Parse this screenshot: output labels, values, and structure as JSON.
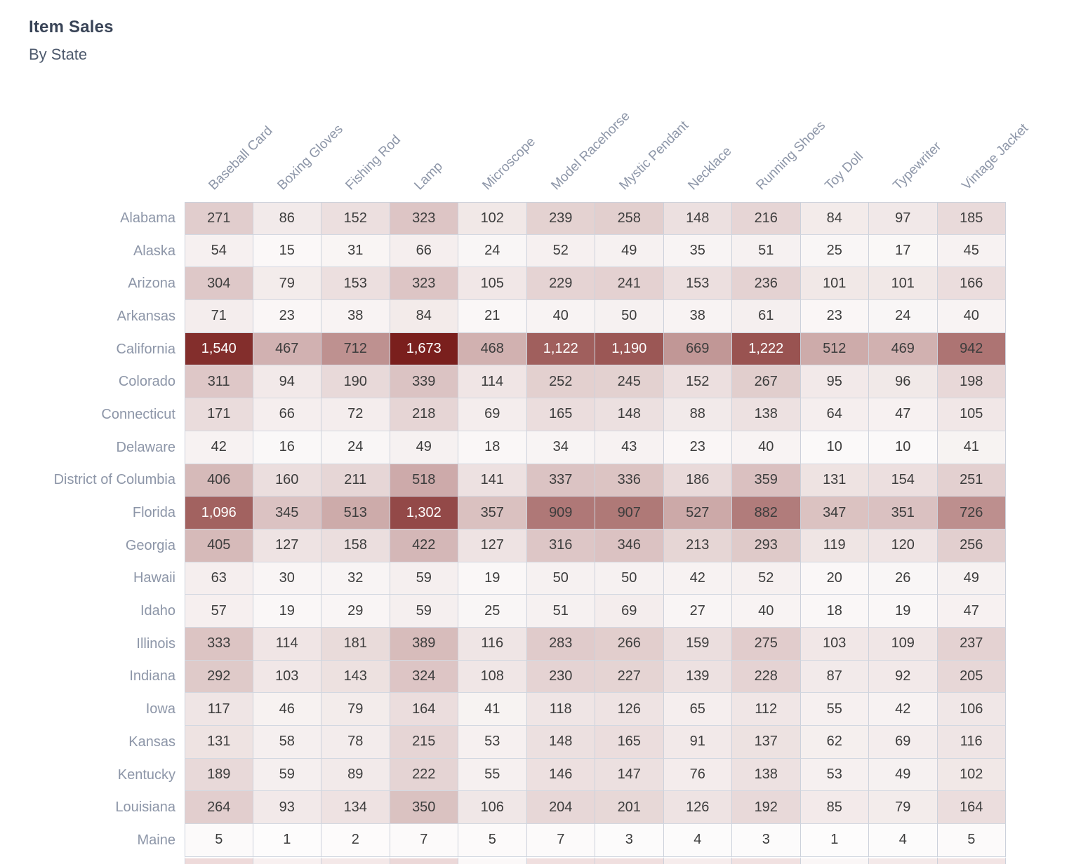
{
  "title": "Item Sales",
  "subtitle": "By State",
  "chart_data": {
    "type": "heatmap",
    "title": "Item Sales",
    "subtitle": "By State",
    "legend": "none",
    "columns": [
      "Baseball Card",
      "Boxing Gloves",
      "Fishing Rod",
      "Lamp",
      "Microscope",
      "Model Racehorse",
      "Mystic Pendant",
      "Necklace",
      "Running Shoes",
      "Toy Doll",
      "Typewriter",
      "Vintage Jacket"
    ],
    "rows": [
      {
        "label": "Alabama",
        "values": [
          271,
          86,
          152,
          323,
          102,
          239,
          258,
          148,
          216,
          84,
          97,
          185
        ]
      },
      {
        "label": "Alaska",
        "values": [
          54,
          15,
          31,
          66,
          24,
          52,
          49,
          35,
          51,
          25,
          17,
          45
        ]
      },
      {
        "label": "Arizona",
        "values": [
          304,
          79,
          153,
          323,
          105,
          229,
          241,
          153,
          236,
          101,
          101,
          166
        ]
      },
      {
        "label": "Arkansas",
        "values": [
          71,
          23,
          38,
          84,
          21,
          40,
          50,
          38,
          61,
          23,
          24,
          40
        ]
      },
      {
        "label": "California",
        "values": [
          1540,
          467,
          712,
          1673,
          468,
          1122,
          1190,
          669,
          1222,
          512,
          469,
          942
        ]
      },
      {
        "label": "Colorado",
        "values": [
          311,
          94,
          190,
          339,
          114,
          252,
          245,
          152,
          267,
          95,
          96,
          198
        ]
      },
      {
        "label": "Connecticut",
        "values": [
          171,
          66,
          72,
          218,
          69,
          165,
          148,
          88,
          138,
          64,
          47,
          105
        ]
      },
      {
        "label": "Delaware",
        "values": [
          42,
          16,
          24,
          49,
          18,
          34,
          43,
          23,
          40,
          10,
          10,
          41
        ]
      },
      {
        "label": "District of Columbia",
        "values": [
          406,
          160,
          211,
          518,
          141,
          337,
          336,
          186,
          359,
          131,
          154,
          251
        ]
      },
      {
        "label": "Florida",
        "values": [
          1096,
          345,
          513,
          1302,
          357,
          909,
          907,
          527,
          882,
          347,
          351,
          726
        ]
      },
      {
        "label": "Georgia",
        "values": [
          405,
          127,
          158,
          422,
          127,
          316,
          346,
          213,
          293,
          119,
          120,
          256
        ]
      },
      {
        "label": "Hawaii",
        "values": [
          63,
          30,
          32,
          59,
          19,
          50,
          50,
          42,
          52,
          20,
          26,
          49
        ]
      },
      {
        "label": "Idaho",
        "values": [
          57,
          19,
          29,
          59,
          25,
          51,
          69,
          27,
          40,
          18,
          19,
          47
        ]
      },
      {
        "label": "Illinois",
        "values": [
          333,
          114,
          181,
          389,
          116,
          283,
          266,
          159,
          275,
          103,
          109,
          237
        ]
      },
      {
        "label": "Indiana",
        "values": [
          292,
          103,
          143,
          324,
          108,
          230,
          227,
          139,
          228,
          87,
          92,
          205
        ]
      },
      {
        "label": "Iowa",
        "values": [
          117,
          46,
          79,
          164,
          41,
          118,
          126,
          65,
          112,
          55,
          42,
          106
        ]
      },
      {
        "label": "Kansas",
        "values": [
          131,
          58,
          78,
          215,
          53,
          148,
          165,
          91,
          137,
          62,
          69,
          116
        ]
      },
      {
        "label": "Kentucky",
        "values": [
          189,
          59,
          89,
          222,
          55,
          146,
          147,
          76,
          138,
          53,
          49,
          102
        ]
      },
      {
        "label": "Louisiana",
        "values": [
          264,
          93,
          134,
          350,
          106,
          204,
          201,
          126,
          192,
          85,
          79,
          164
        ]
      },
      {
        "label": "Maine",
        "values": [
          5,
          1,
          2,
          7,
          5,
          7,
          3,
          4,
          3,
          1,
          4,
          5
        ]
      }
    ],
    "value_range": [
      0,
      1673
    ],
    "color_scale": {
      "min_color": "#fdfcfc",
      "max_color": "#7a1f1d",
      "gamma": 0.85,
      "white_text_threshold": 0.65
    },
    "next_row_partial_colors": [
      "#eedada",
      "#f8f0f0",
      "#f4e8e8",
      "#ecd8d8",
      "#fbf8f8",
      "#f0dfdf",
      "#f0dfdf",
      "#f6ecec",
      "#f1e1e1",
      "#faf6f6",
      "#f4e9e9",
      "#f2e4e4"
    ]
  },
  "styles": {
    "title_color": "#394457",
    "subtitle_color": "#4e5a6d",
    "axis_label_color": "#8d96a8",
    "cell_text_color": "#3d3d3d",
    "cell_text_color_dark_bg": "#ffffff",
    "grid_border_color": "#ccd1db"
  }
}
